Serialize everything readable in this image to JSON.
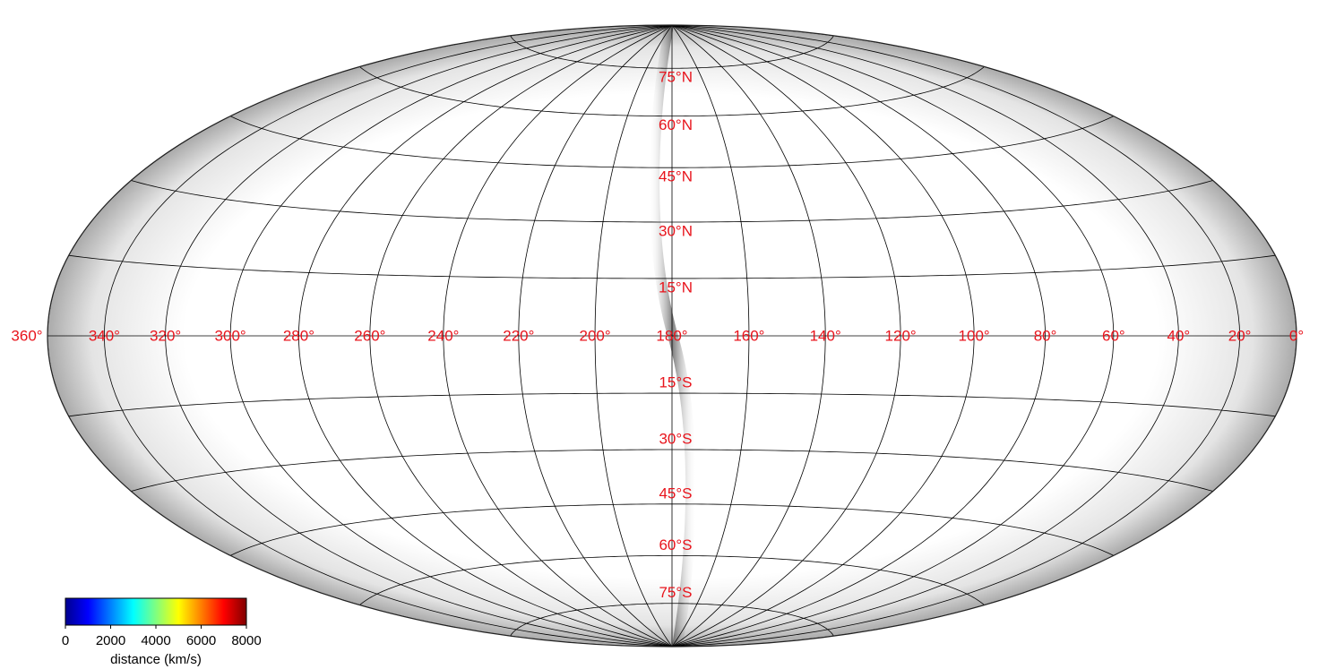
{
  "chart_data": {
    "type": "sky-map",
    "xlim": [
      360,
      0
    ],
    "xticks": [
      {
        "value": 360,
        "label": "360°"
      },
      {
        "value": 340,
        "label": "340°"
      },
      {
        "value": 320,
        "label": "320°"
      },
      {
        "value": 300,
        "label": "300°"
      },
      {
        "value": 280,
        "label": "280°"
      },
      {
        "value": 260,
        "label": "260°"
      },
      {
        "value": 240,
        "label": "240°"
      },
      {
        "value": 220,
        "label": "220°"
      },
      {
        "value": 200,
        "label": "200°"
      },
      {
        "value": 180,
        "label": "180°"
      },
      {
        "value": 160,
        "label": "160°"
      },
      {
        "value": 140,
        "label": "140°"
      },
      {
        "value": 120,
        "label": "120°"
      },
      {
        "value": 100,
        "label": "100°"
      },
      {
        "value": 80,
        "label": "80°"
      },
      {
        "value": 60,
        "label": "60°"
      },
      {
        "value": 40,
        "label": "40°"
      },
      {
        "value": 20,
        "label": "20°"
      },
      {
        "value": 0,
        "label": "0°"
      }
    ],
    "ylim": [
      -90,
      90
    ],
    "yticks": [
      {
        "value": 75,
        "label": "75°N"
      },
      {
        "value": 60,
        "label": "60°N"
      },
      {
        "value": 45,
        "label": "45°N"
      },
      {
        "value": 30,
        "label": "30°N"
      },
      {
        "value": 15,
        "label": "15°N"
      },
      {
        "value": -15,
        "label": "15°S"
      },
      {
        "value": -30,
        "label": "30°S"
      },
      {
        "value": -45,
        "label": "45°S"
      },
      {
        "value": -60,
        "label": "60°S"
      },
      {
        "value": -75,
        "label": "75°S"
      }
    ],
    "label_color": "#e8141c",
    "grid": true,
    "colorbar": {
      "label": "distance (km/s)",
      "lim": [
        0,
        8000
      ],
      "ticks": [
        0,
        2000,
        4000,
        6000,
        8000
      ]
    }
  }
}
